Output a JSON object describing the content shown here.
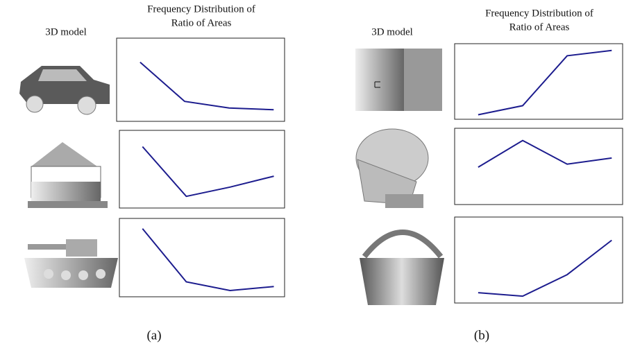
{
  "panels": [
    {
      "label": "(a)",
      "model_header": "3D model",
      "chart_header": [
        "Frequency Distribution of",
        "Ratio of Areas"
      ]
    },
    {
      "label": "(b)",
      "model_header": "3D model",
      "chart_header": [
        "Frequency Distribution of",
        "Ratio of Areas"
      ]
    }
  ],
  "chart_data": [
    {
      "type": "line",
      "categories": [
        null,
        null,
        null,
        null
      ],
      "values": [
        71,
        24,
        16,
        14
      ],
      "color": "#1c1c8e",
      "ylim": [
        0,
        100
      ]
    },
    {
      "type": "line",
      "categories": [
        null,
        null,
        null,
        null
      ],
      "values": [
        79,
        15,
        27,
        41
      ],
      "color": "#1c1c8e",
      "ylim": [
        0,
        100
      ]
    },
    {
      "type": "line",
      "categories": [
        null,
        null,
        null,
        null
      ],
      "values": [
        87,
        19,
        8,
        13
      ],
      "color": "#1c1c8e",
      "ylim": [
        0,
        100
      ]
    },
    {
      "type": "line",
      "categories": [
        null,
        null,
        null,
        null
      ],
      "values": [
        6,
        18,
        84,
        91
      ],
      "color": "#1c1c8e",
      "ylim": [
        0,
        100
      ]
    },
    {
      "type": "line",
      "categories": [
        null,
        null,
        null,
        null
      ],
      "values": [
        49,
        84,
        53,
        61
      ],
      "color": "#1c1c8e",
      "ylim": [
        0,
        100
      ]
    },
    {
      "type": "line",
      "categories": [
        null,
        null,
        null,
        null
      ],
      "values": [
        12,
        8,
        33,
        73
      ],
      "color": "#1c1c8e",
      "ylim": [
        0,
        100
      ]
    }
  ]
}
